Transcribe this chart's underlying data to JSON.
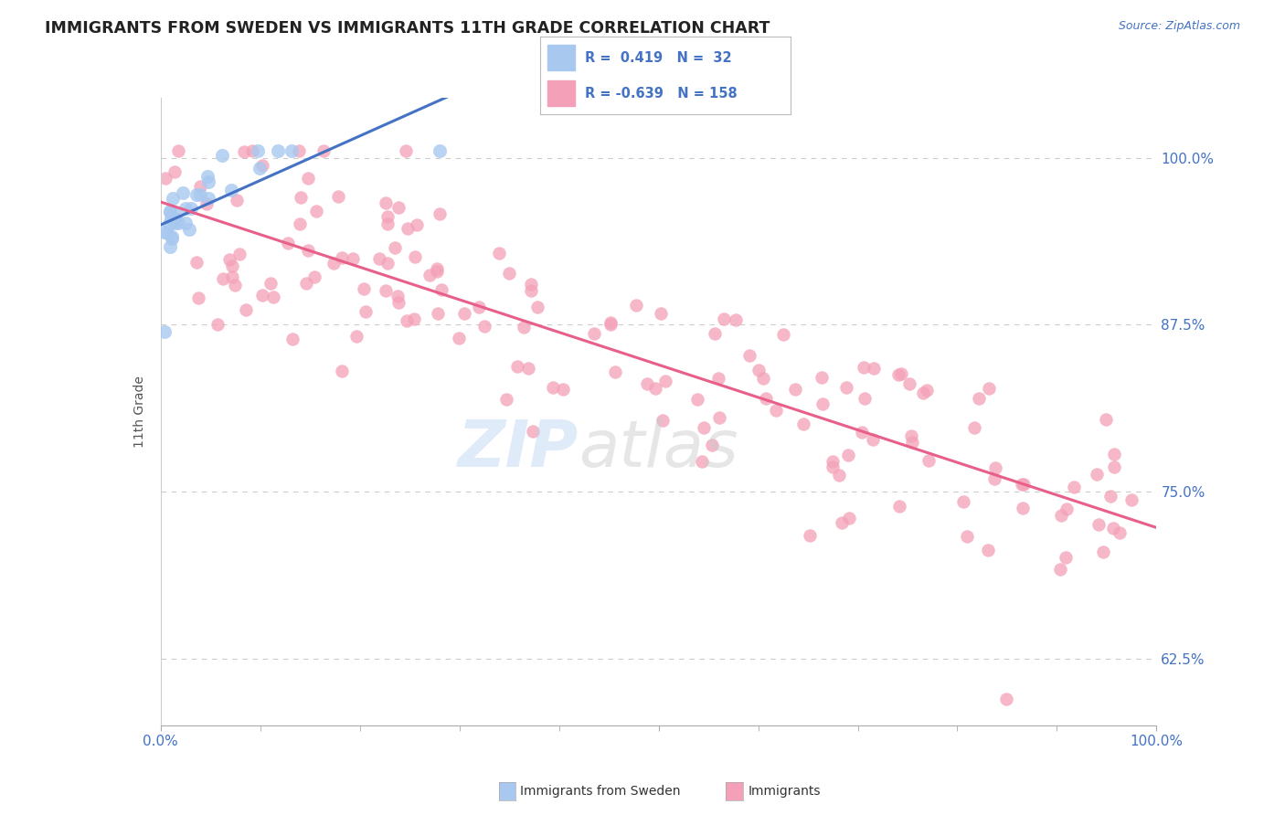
{
  "title": "IMMIGRANTS FROM SWEDEN VS IMMIGRANTS 11TH GRADE CORRELATION CHART",
  "source": "Source: ZipAtlas.com",
  "ylabel": "11th Grade",
  "y_tick_positions": [
    1.0,
    0.875,
    0.75,
    0.625
  ],
  "y_tick_labels": [
    "100.0%",
    "87.5%",
    "75.0%",
    "62.5%"
  ],
  "x_lim": [
    0.0,
    1.0
  ],
  "y_lim": [
    0.575,
    1.045
  ],
  "blue_color": "#A8C8F0",
  "pink_color": "#F4A0B8",
  "blue_line_color": "#4472C4",
  "pink_line_color": "#E8608A",
  "label_color": "#4472C4",
  "grid_color": "#CCCCCC",
  "watermark_zip": "ZIP",
  "watermark_atlas": "atlas",
  "legend_text": [
    "R =  0.419   N =  32",
    "R = -0.639   N = 158"
  ],
  "legend_colors": [
    "#A8C8F0",
    "#F4A0B8"
  ],
  "bottom_legend_labels": [
    "Immigrants from Sweden",
    "Immigrants"
  ],
  "bottom_legend_colors": [
    "#A8C8F0",
    "#F4A0B8"
  ]
}
